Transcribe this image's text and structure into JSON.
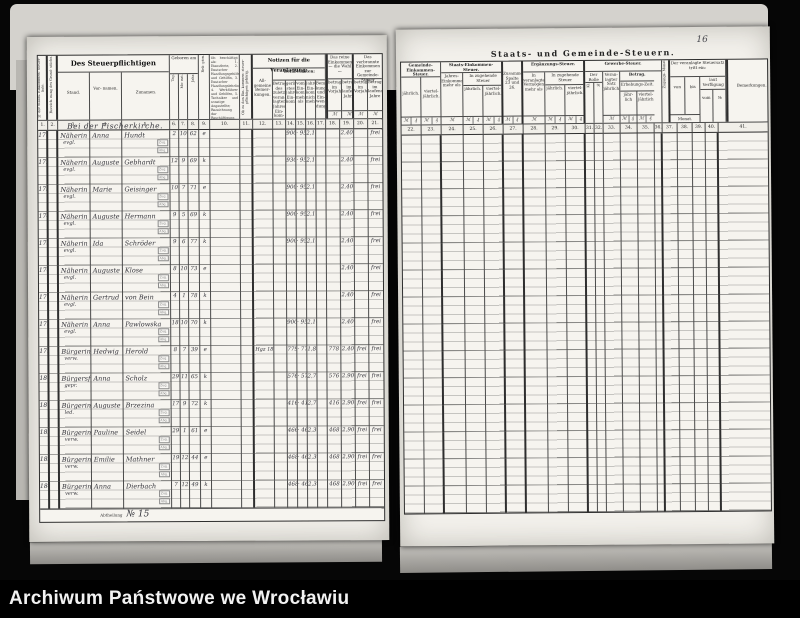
{
  "footer": {
    "archive_label": "Archiwum Państwowe we Wrocławiu"
  },
  "page_number": "16",
  "left_page": {
    "section_heading": "Bei der Fischerkirche.",
    "footer_label": "Abtheilung",
    "footer_value": "№ 15",
    "stamp_zug": "Zug.",
    "stamp_abg": "Abg.",
    "header": {
      "col1": "№ der Staats- Einkommen- Steuer- liste.",
      "col2": "Bezeich- nung des Grund- stücks.",
      "taxpayer_group": "Des Steuerpflichtigen",
      "stand": "Stand.",
      "vorname": "Vor- namen.",
      "zuname": "Zunamen.",
      "geboren": "Geboren am",
      "tag": "Tag.",
      "monat": "Mo- nat.",
      "jahr": "Jahr.",
      "religion": "Reli- gion.",
      "col10": "Ob beschäftigt als: 1. Dienstbote, 2. Deutscher Handlungsgehilfe und Gehilfin, 3. Deutscher Handlungslehrling, 4. Werkführer und Gehilfen, 5. Techniker und sonstige Angestellte; Bezeichnung der Beschäftigung.",
      "col11": "Ob zu den Ein- kommen- steuer- pflichtigen gehörig.",
      "notizen_group": "Notizen für die Veranlagung:",
      "col12": "All- gemeine Bemer- kungen.",
      "beamten_group": "Der Beamten:",
      "col13": "Betrag des zuletzt veran- lagten Jahres- Ein- kom- mens.",
      "col14": "gering- stes Jahres- Ein- kommen",
      "col15": "vom Ein- kommen mehr als",
      "col16": "Jahres- Ein- kommen nicht mehr",
      "col17": "Bemer- kungen und Ein- wen- dungen",
      "reine_group": "Das reine Einkommen — die Wahl —",
      "col18": "betrag im Vorjahre",
      "col19": "betrag im laufenden Jahre",
      "verbrannte_group": "Das verbrannte Einkommen zur Gemeinde-Steuer",
      "col20": "betrag im Vorjahre",
      "col21": "betrag im laufenden Jahre",
      "mark": "ℳ"
    },
    "numbers": [
      "1.",
      "2.",
      "3.",
      "4.",
      "5.",
      "6.",
      "7.",
      "8.",
      "9.",
      "10.",
      "11.",
      "12.",
      "13.",
      "14.",
      "15.",
      "16.",
      "17.",
      "18.",
      "19.",
      "20.",
      "21."
    ],
    "rows": [
      {
        "no": "171",
        "stand": "Näherin",
        "stand2": "evgl.",
        "vn": "Anna",
        "zn": "Hundt",
        "t": "2",
        "m": "10",
        "j": "62",
        "rel": "e",
        "bem": "",
        "a": "900",
        "b": "· 950",
        "c": "2,16",
        "d": "",
        "d2": "2,40",
        "e": "",
        "f": "frei"
      },
      {
        "no": "172",
        "stand": "Näherin",
        "stand2": "evgl.",
        "vn": "Auguste",
        "zn": "Gebhardt",
        "t": "12",
        "m": "9",
        "j": "69",
        "rel": "k",
        "bem": "",
        "a": "930",
        "b": "· 950",
        "c": "2,16",
        "d": "",
        "d2": "2,40",
        "e": "",
        "f": "frei"
      },
      {
        "no": "173",
        "stand": "Näherin",
        "stand2": "evgl.",
        "vn": "Marie",
        "zn": "Geisinger",
        "t": "10",
        "m": "7",
        "j": "71",
        "rel": "e",
        "bem": "",
        "a": "900",
        "b": "· 950",
        "c": "2,16",
        "d": "",
        "d2": "2,40",
        "e": "",
        "f": "frei"
      },
      {
        "no": "174",
        "stand": "Näherin",
        "stand2": "evgl.",
        "vn": "Auguste",
        "zn": "Hermann",
        "t": "9",
        "m": "5",
        "j": "69",
        "rel": "k",
        "bem": "",
        "a": "900",
        "b": "· 950",
        "c": "2,16",
        "d": "",
        "d2": "2,40",
        "e": "",
        "f": "frei"
      },
      {
        "no": "175",
        "stand": "Näherin",
        "stand2": "evgl.",
        "vn": "Ida",
        "zn": "Schröder",
        "t": "9",
        "m": "6",
        "j": "77",
        "rel": "k",
        "bem": "",
        "a": "900",
        "b": "· 950",
        "c": "2,16",
        "d": "",
        "d2": "2,40",
        "e": "",
        "f": "frei"
      },
      {
        "no": "176",
        "stand": "Näherin",
        "stand2": "evgl.",
        "vn": "Auguste",
        "zn": "Klose",
        "t": "8",
        "m": "10",
        "j": "73",
        "rel": "e",
        "bem": "",
        "a": "",
        "b": "",
        "c": "",
        "d": "",
        "d2": "2,40",
        "e": "",
        "f": "frei"
      },
      {
        "no": "177",
        "stand": "Näherin",
        "stand2": "evgl.",
        "vn": "Gertrud",
        "zn": "von Bein",
        "t": "4",
        "m": "1",
        "j": "78",
        "rel": "k",
        "bem": "",
        "a": "",
        "b": "",
        "c": "",
        "d": "",
        "d2": "2,40",
        "e": "",
        "f": "frei"
      },
      {
        "no": "178",
        "stand": "Näherin",
        "stand2": "evgl.",
        "vn": "Anna",
        "zn": "Pawlowska",
        "t": "18",
        "m": "10",
        "j": "70",
        "rel": "k",
        "bem": "",
        "a": "900",
        "b": "· 950",
        "c": "2,16",
        "d": "",
        "d2": "2,40",
        "e": "",
        "f": "frei"
      },
      {
        "no": "179",
        "stand": "Bürgerin",
        "stand2": "verw.",
        "vn": "Hedwig",
        "zn": "Herold",
        "t": "8",
        "m": "7",
        "j": "39",
        "rel": "e",
        "bem": "Hgz 1883 1/12",
        "a": "779",
        "b": "· 779",
        "c": "1,87",
        "d": "778",
        "d2": "2,40",
        "e": "frei",
        "f": "frei"
      },
      {
        "no": "180",
        "stand": "Bürgersfrau",
        "stand2": "gepr.",
        "vn": "Anna",
        "zn": "Scholz",
        "t": "29",
        "m": "11",
        "j": "65",
        "rel": "k",
        "bem": "",
        "a": "576",
        "b": "· 576",
        "c": "2,73",
        "d": "576",
        "d2": "2,90",
        "e": "frei",
        "f": "frei"
      },
      {
        "no": "181",
        "stand": "Bürgerin",
        "stand2": "led.",
        "vn": "Auguste",
        "zn": "Brzezina",
        "t": "17",
        "m": "9",
        "j": "72",
        "rel": "k",
        "bem": "",
        "a": "416",
        "b": "· 416",
        "c": "2,73",
        "d": "416",
        "d2": "2,90",
        "e": "frei",
        "f": "frei"
      },
      {
        "no": "182",
        "stand": "Bürgerin",
        "stand2": "verw.",
        "vn": "Pauline",
        "zn": "Seidel",
        "t": "29",
        "m": "1",
        "j": "61",
        "rel": "e",
        "bem": "",
        "a": "466",
        "b": "· 468",
        "c": "2,34",
        "d": "468",
        "d2": "2,90",
        "e": "frei",
        "f": "frei"
      },
      {
        "no": "183",
        "stand": "Bürgerin",
        "stand2": "verw.",
        "vn": "Emilie",
        "zn": "Mathner",
        "t": "19",
        "m": "12",
        "j": "44",
        "rel": "e",
        "bem": "",
        "a": "468",
        "b": "· 468",
        "c": "2,34",
        "d": "468",
        "d2": "2,90",
        "e": "frei",
        "f": "frei"
      },
      {
        "no": "184",
        "stand": "Bürgerin",
        "stand2": "verw.",
        "vn": "Anna",
        "zn": "Dierbach",
        "t": "7",
        "m": "12",
        "j": "49",
        "rel": "k",
        "bem": "",
        "a": "468",
        "b": "· 468",
        "c": "2,34",
        "d": "468",
        "d2": "2,90",
        "e": "frei",
        "f": "frei"
      }
    ]
  },
  "right_page": {
    "title": "Staats- und Gemeinde-Steuern.",
    "header": {
      "g1": "Gemeinde- Einkommen-Steuer.",
      "col22": "jährlich.",
      "col23": "viertel- jährlich.",
      "g2": "Staats-Einkommen-Steuer.",
      "col24": "Jahres- Einkommen mehr als",
      "zugehend": "In zugehende Steuer",
      "col25": "jährlich.",
      "col26": "viertel- jährlich.",
      "col27": "Zusammen Spalte 23 und 26.",
      "g4": "Ergänzungs-Steuer.",
      "col28": "In veranlagtem Vermögen mehr als",
      "col29": "jährlich.",
      "col30": "viertel- jährlich.",
      "g5": "Gewerbe-Steuer.",
      "rolle": "Der Rolle",
      "col31": "Kl.",
      "col32": "№",
      "col33": "Veran- lagter Satz jährlich",
      "betrag": "Betrag.",
      "erhebung": "Erhebungs-Zeit.",
      "col34": "jähr- lich",
      "col35": "viertel- jährlich",
      "col36": "Zugangs- Monat",
      "g6": "Der veranlagte Steuersatz tritt ein:",
      "col37": "von",
      "col38": "bis",
      "monat": "Monat.",
      "verfuegung": "laut Verfügung",
      "col39": "vom",
      "col40": "№",
      "col41": "Bemerkungen.",
      "mark": "ℳ",
      "pfennig": "₰"
    },
    "numbers": [
      "22.",
      "23.",
      "24.",
      "25.",
      "26.",
      "27.",
      "28.",
      "29.",
      "30.",
      "31.",
      "32.",
      "33.",
      "34.",
      "35.",
      "36.",
      "37.",
      "38.",
      "39.",
      "40.",
      "41."
    ]
  }
}
